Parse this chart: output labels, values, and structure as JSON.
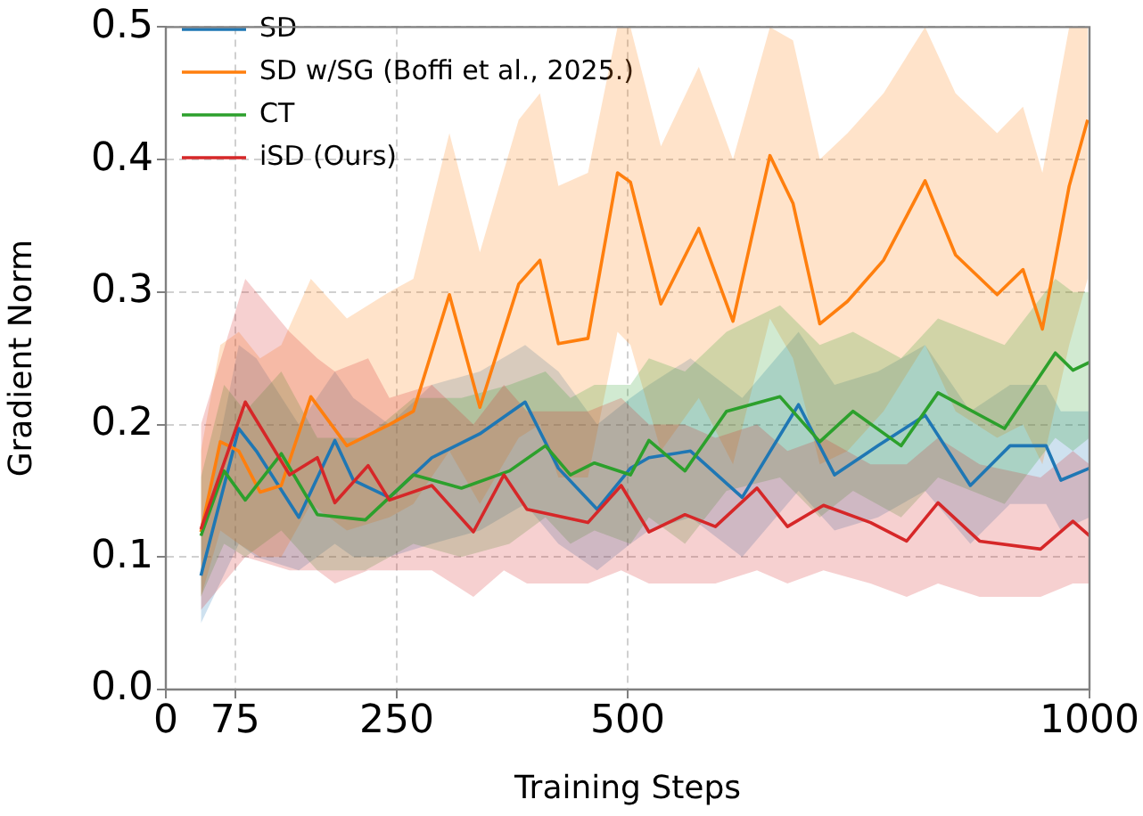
{
  "chart_data": {
    "type": "line",
    "xlabel": "Training Steps",
    "ylabel": "Gradient Norm",
    "xlim": [
      0,
      1000
    ],
    "xticks": [
      0,
      75,
      250,
      500,
      1000
    ],
    "ylim": [
      0,
      0.5
    ],
    "yticks": [
      {
        "value": 0,
        "label": "0.0"
      },
      0.1,
      0.2,
      0.3,
      0.4,
      0.5
    ],
    "grid": true,
    "legend": "top left",
    "series": [
      {
        "name": "SD",
        "color": "#1f77b4",
        "x": [
          38,
          79,
          98,
          144,
          183,
          203,
          242,
          288,
          340,
          389,
          425,
          467,
          503,
          523,
          568,
          624,
          685,
          724,
          771,
          822,
          871,
          914,
          953,
          969,
          1000
        ],
        "values": [
          0.086,
          0.197,
          0.18,
          0.13,
          0.188,
          0.158,
          0.145,
          0.175,
          0.193,
          0.217,
          0.167,
          0.136,
          0.167,
          0.175,
          0.18,
          0.145,
          0.215,
          0.162,
          0.184,
          0.207,
          0.154,
          0.184,
          0.184,
          0.158,
          0.167
        ],
        "upper": [
          0.12,
          0.26,
          0.25,
          0.2,
          0.24,
          0.22,
          0.2,
          0.23,
          0.24,
          0.26,
          0.24,
          0.2,
          0.22,
          0.23,
          0.25,
          0.22,
          0.27,
          0.23,
          0.24,
          0.26,
          0.21,
          0.23,
          0.23,
          0.21,
          0.21
        ],
        "lower": [
          0.05,
          0.11,
          0.1,
          0.09,
          0.11,
          0.1,
          0.1,
          0.11,
          0.12,
          0.14,
          0.11,
          0.09,
          0.11,
          0.12,
          0.13,
          0.1,
          0.15,
          0.12,
          0.13,
          0.15,
          0.11,
          0.14,
          0.14,
          0.12,
          0.13
        ]
      },
      {
        "name": "SD w/SG (Boffi et al., 2025.)",
        "color": "#ff7f0e",
        "x": [
          38,
          59,
          79,
          102,
          125,
          157,
          196,
          242,
          268,
          307,
          340,
          382,
          405,
          425,
          457,
          489,
          503,
          536,
          577,
          614,
          654,
          679,
          708,
          738,
          777,
          822,
          855,
          900,
          928,
          949,
          978,
          998
        ],
        "values": [
          0.119,
          0.187,
          0.18,
          0.149,
          0.154,
          0.221,
          0.184,
          0.2,
          0.21,
          0.298,
          0.213,
          0.306,
          0.324,
          0.261,
          0.265,
          0.39,
          0.383,
          0.291,
          0.348,
          0.278,
          0.403,
          0.367,
          0.276,
          0.293,
          0.324,
          0.384,
          0.328,
          0.298,
          0.317,
          0.272,
          0.38,
          0.43
        ],
        "upper": [
          0.18,
          0.26,
          0.27,
          0.25,
          0.26,
          0.31,
          0.28,
          0.3,
          0.31,
          0.42,
          0.33,
          0.43,
          0.45,
          0.38,
          0.39,
          0.5,
          0.5,
          0.41,
          0.47,
          0.4,
          0.5,
          0.49,
          0.4,
          0.42,
          0.45,
          0.5,
          0.45,
          0.42,
          0.44,
          0.39,
          0.5,
          0.5
        ],
        "lower": [
          0.07,
          0.12,
          0.11,
          0.1,
          0.1,
          0.14,
          0.12,
          0.13,
          0.14,
          0.18,
          0.14,
          0.19,
          0.2,
          0.16,
          0.16,
          0.27,
          0.26,
          0.18,
          0.22,
          0.17,
          0.28,
          0.25,
          0.17,
          0.18,
          0.21,
          0.26,
          0.21,
          0.19,
          0.2,
          0.17,
          0.26,
          0.31
        ]
      },
      {
        "name": "CT",
        "color": "#2ca02c",
        "x": [
          38,
          63,
          86,
          125,
          164,
          216,
          268,
          320,
          372,
          411,
          438,
          464,
          503,
          523,
          562,
          607,
          665,
          708,
          744,
          796,
          836,
          908,
          963,
          982,
          1000
        ],
        "values": [
          0.116,
          0.165,
          0.143,
          0.178,
          0.132,
          0.128,
          0.162,
          0.152,
          0.165,
          0.184,
          0.162,
          0.171,
          0.162,
          0.188,
          0.165,
          0.21,
          0.221,
          0.187,
          0.21,
          0.184,
          0.224,
          0.197,
          0.254,
          0.241,
          0.247
        ],
        "upper": [
          0.16,
          0.23,
          0.21,
          0.24,
          0.19,
          0.19,
          0.22,
          0.22,
          0.23,
          0.24,
          0.22,
          0.23,
          0.23,
          0.25,
          0.24,
          0.27,
          0.29,
          0.26,
          0.27,
          0.25,
          0.28,
          0.26,
          0.31,
          0.3,
          0.3
        ],
        "lower": [
          0.07,
          0.11,
          0.1,
          0.12,
          0.09,
          0.09,
          0.11,
          0.1,
          0.11,
          0.13,
          0.11,
          0.12,
          0.11,
          0.13,
          0.11,
          0.15,
          0.16,
          0.13,
          0.15,
          0.13,
          0.16,
          0.14,
          0.19,
          0.18,
          0.19
        ]
      },
      {
        "name": "iSD (Ours)",
        "color": "#d62728",
        "x": [
          38,
          86,
          134,
          164,
          183,
          219,
          242,
          288,
          333,
          366,
          391,
          457,
          493,
          523,
          562,
          595,
          640,
          673,
          712,
          763,
          802,
          836,
          881,
          947,
          982,
          1000
        ],
        "values": [
          0.121,
          0.217,
          0.162,
          0.175,
          0.141,
          0.169,
          0.143,
          0.154,
          0.119,
          0.162,
          0.136,
          0.126,
          0.154,
          0.119,
          0.132,
          0.123,
          0.152,
          0.123,
          0.139,
          0.126,
          0.112,
          0.141,
          0.112,
          0.106,
          0.127,
          0.116
        ],
        "upper": [
          0.2,
          0.31,
          0.27,
          0.25,
          0.24,
          0.25,
          0.22,
          0.23,
          0.2,
          0.23,
          0.21,
          0.21,
          0.22,
          0.2,
          0.2,
          0.19,
          0.2,
          0.18,
          0.19,
          0.17,
          0.17,
          0.19,
          0.17,
          0.16,
          0.18,
          0.17
        ],
        "lower": [
          0.06,
          0.1,
          0.09,
          0.09,
          0.08,
          0.09,
          0.09,
          0.09,
          0.07,
          0.09,
          0.08,
          0.08,
          0.09,
          0.08,
          0.08,
          0.08,
          0.09,
          0.08,
          0.09,
          0.08,
          0.07,
          0.08,
          0.07,
          0.07,
          0.08,
          0.08
        ]
      }
    ]
  }
}
